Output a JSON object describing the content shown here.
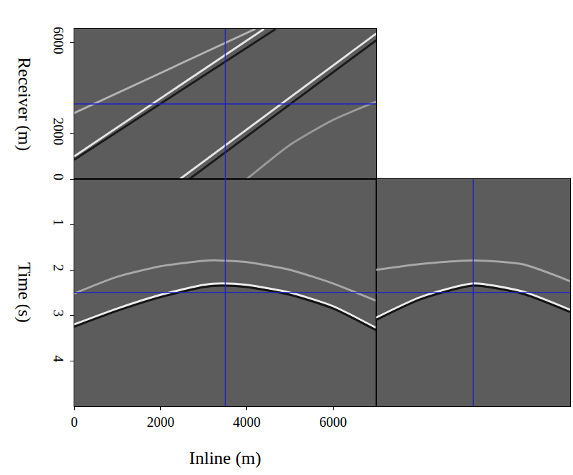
{
  "chart_data": [
    {
      "type": "line",
      "ylabel": "Receiver (m)",
      "xlim": [
        0,
        7000
      ],
      "ylim": [
        0,
        6600
      ],
      "yticks": [
        0,
        2000,
        6000
      ],
      "tick_labels": "y",
      "crosshair": {
        "x": 3500,
        "y": 3300,
        "color": "#1f1fc8"
      },
      "series": [
        {
          "color": "#b4b4b4",
          "x": [
            0,
            4200
          ],
          "values": [
            2900,
            6600
          ]
        },
        {
          "color": "#e6e6e6",
          "x": [
            0,
            4400
          ],
          "values": [
            1000,
            6600
          ]
        },
        {
          "color": "#1a1a1a",
          "x": [
            0,
            4670
          ],
          "values": [
            850,
            6600
          ]
        },
        {
          "color": "#e6e6e6",
          "x": [
            2450,
            7000
          ],
          "values": [
            0,
            6400
          ]
        },
        {
          "color": "#1a1a1a",
          "x": [
            2670,
            7000
          ],
          "values": [
            0,
            6100
          ]
        },
        {
          "color": "#9a9a9a",
          "x": [
            4000,
            5000,
            6000,
            7000
          ],
          "values": [
            0,
            1500,
            2600,
            3400
          ]
        }
      ]
    },
    {
      "type": "line",
      "xlabel": "Inline (m)",
      "ylabel": "Time (s)",
      "xlim": [
        0,
        7000
      ],
      "ylim": [
        0,
        5
      ],
      "xticks": [
        0,
        2000,
        4000,
        6000
      ],
      "yticks": [
        1,
        2,
        3,
        4
      ],
      "tick_labels": true,
      "crosshair": {
        "x": 3500,
        "y": 2.5,
        "color": "#1f1fc8"
      },
      "series": [
        {
          "color": "#a8a8a8",
          "x": [
            0,
            1000,
            2000,
            3000,
            3300,
            4000,
            5000,
            6000,
            7000
          ],
          "values": [
            2.52,
            2.15,
            1.92,
            1.8,
            1.79,
            1.83,
            2.0,
            2.3,
            2.68
          ]
        },
        {
          "color": "#ececec",
          "x": [
            0,
            1000,
            2000,
            3000,
            3400,
            4000,
            5000,
            6000,
            7000
          ],
          "values": [
            3.2,
            2.85,
            2.55,
            2.33,
            2.3,
            2.33,
            2.5,
            2.8,
            3.28
          ]
        },
        {
          "color": "#141414",
          "x": [
            0,
            1000,
            2000,
            3000,
            3400,
            4000,
            5000,
            6000,
            7000
          ],
          "values": [
            3.25,
            2.9,
            2.6,
            2.38,
            2.35,
            2.38,
            2.55,
            2.85,
            3.33
          ]
        }
      ]
    },
    {
      "type": "line",
      "xlim": [
        0,
        6600
      ],
      "ylim": [
        0,
        5
      ],
      "tick_labels": false,
      "crosshair": {
        "x": 3300,
        "y": 2.5,
        "color": "#1f1fc8"
      },
      "series": [
        {
          "color": "#a8a8a8",
          "x": [
            0,
            1500,
            3300,
            5000,
            6600
          ],
          "values": [
            2.0,
            1.87,
            1.79,
            1.88,
            2.25
          ]
        },
        {
          "color": "#ececec",
          "x": [
            0,
            1500,
            3300,
            5000,
            6600
          ],
          "values": [
            3.05,
            2.6,
            2.3,
            2.48,
            2.88
          ]
        },
        {
          "color": "#141414",
          "x": [
            0,
            1500,
            3300,
            5000,
            6600
          ],
          "values": [
            3.1,
            2.65,
            2.35,
            2.53,
            2.93
          ]
        }
      ]
    }
  ]
}
